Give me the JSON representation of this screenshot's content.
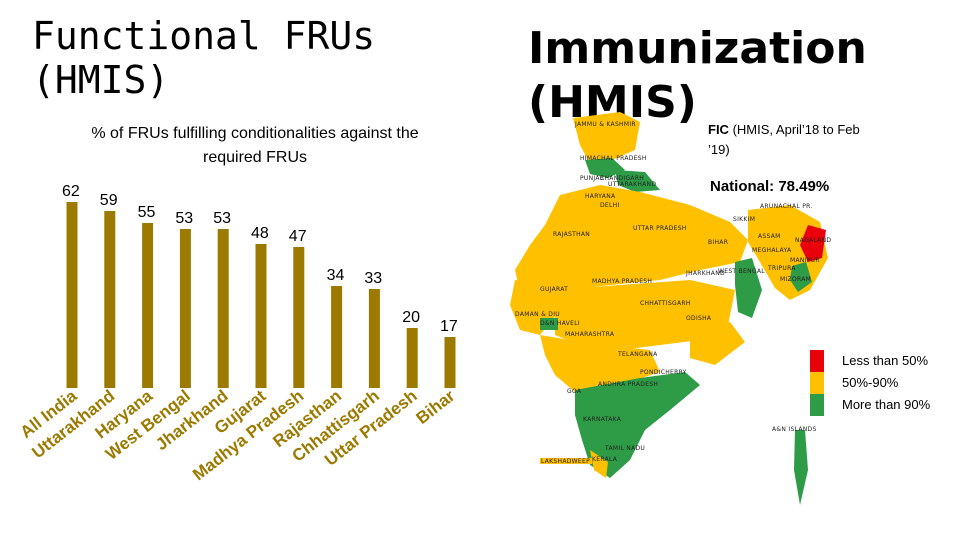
{
  "left_title": "Functional FRUs (HMIS)",
  "right_title": "Immunization (HMIS)",
  "chart_subtitle": "% of FRUs fulfilling conditionalities against the required FRUs",
  "map_note_bold": "FIC",
  "map_note_rest": "(HMIS, April’18 to Feb ’19)",
  "national_label": "National: 78.49%",
  "legend": [
    {
      "label": "Less than 50%",
      "color": "#e8000b"
    },
    {
      "label": "50%-90%",
      "color": "#ffc000"
    },
    {
      "label": "More than 90%",
      "color": "#2e9c47"
    }
  ],
  "map_colors": {
    "low": "#e8000b",
    "mid": "#ffc000",
    "high": "#2e9c47"
  },
  "map_labels": [
    "JAMMU & KASHMIR",
    "HIMACHAL PRADESH",
    "PUNJAB",
    "CHANDIGARH",
    "UTTARAKHAND",
    "HARYANA",
    "DELHI",
    "ARUNACHAL PR.",
    "SIKKIM",
    "RAJASTHAN",
    "UTTAR PRADESH",
    "ASSAM",
    "NAGALAND",
    "BIHAR",
    "MEGHALAYA",
    "MANIPUR",
    "JHARKHAND",
    "WEST BENGAL",
    "TRIPURA",
    "MIZORAM",
    "GUJARAT",
    "MADHYA PRADESH",
    "CHHATTISGARH",
    "DAMAN & DIU",
    "D&N HAVELI",
    "ODISHA",
    "MAHARASHTRA",
    "TELANGANA",
    "PONDICHERRY",
    "ANDHRA PRADESH",
    "GOA",
    "KARNATAKA",
    "A&N ISLANDS",
    "TAMIL NADU",
    "KERALA",
    "LAKSHADWEEP"
  ],
  "chart_data": {
    "type": "bar",
    "title": "Functional FRUs (HMIS)",
    "subtitle": "% of FRUs fulfilling conditionalities against the required FRUs",
    "categories": [
      "All India",
      "Uttarakhand",
      "Haryana",
      "West Bengal",
      "Jharkhand",
      "Gujarat",
      "Madhya Pradesh",
      "Rajasthan",
      "Chhattisgarh",
      "Uttar Pradesh",
      "Bihar"
    ],
    "values": [
      62,
      59,
      55,
      53,
      53,
      48,
      47,
      34,
      33,
      20,
      17
    ],
    "bar_color": "#9c7a00",
    "ylim": [
      0,
      62
    ],
    "xlabel": "",
    "ylabel": "",
    "grid": false,
    "legend": "none"
  }
}
